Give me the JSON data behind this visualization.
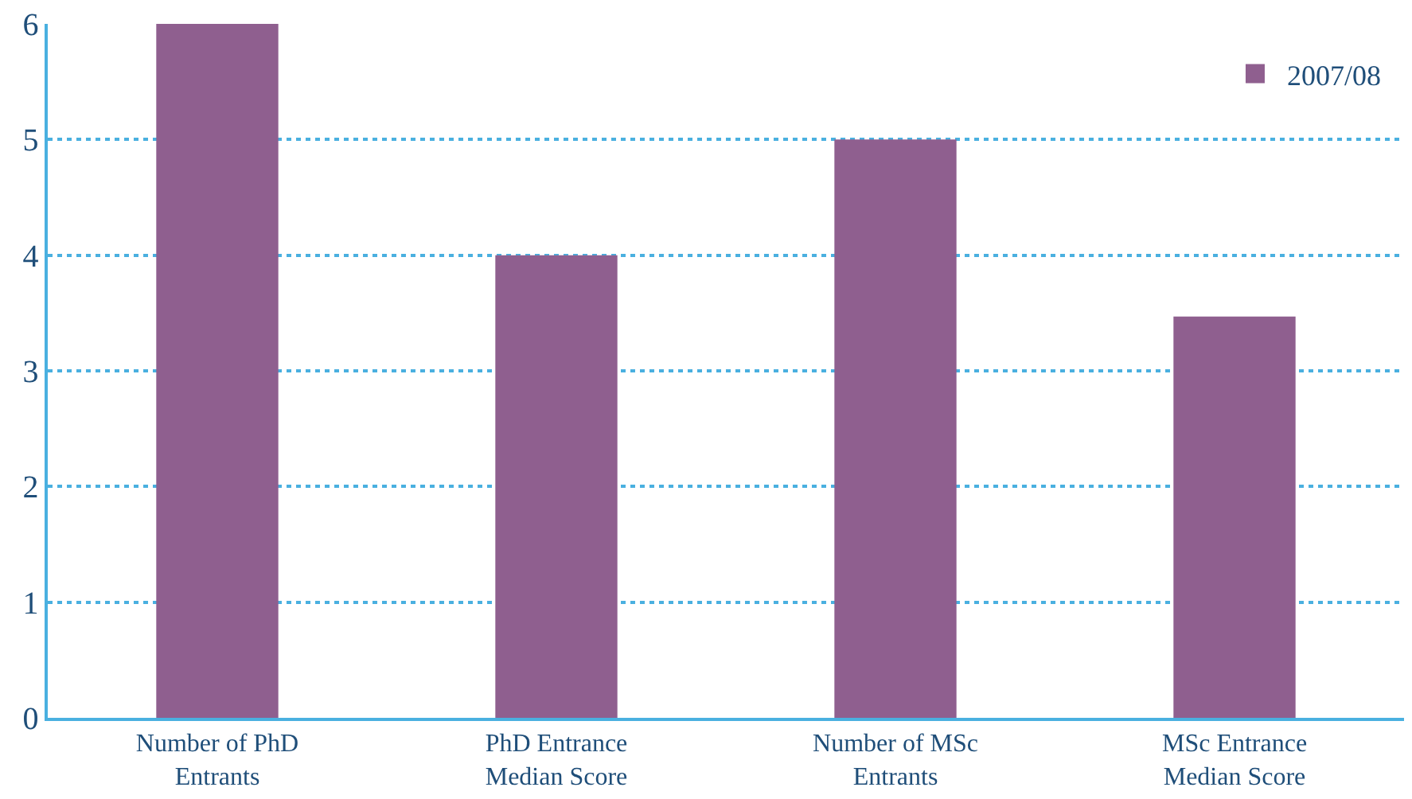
{
  "chart_data": {
    "type": "bar",
    "categories": [
      "Number of PhD\nEntrants",
      "PhD Entrance\nMedian Score",
      "Number of MSc\nEntrants",
      "MSc Entrance\nMedian Score"
    ],
    "series": [
      {
        "name": "2007/08",
        "color": "#8f5f8f",
        "values": [
          6,
          4,
          5,
          3.47
        ]
      }
    ],
    "ylim": [
      0,
      6
    ],
    "yticks": [
      0,
      1,
      2,
      3,
      4,
      5,
      6
    ],
    "grid": "y",
    "legend": "top right"
  }
}
